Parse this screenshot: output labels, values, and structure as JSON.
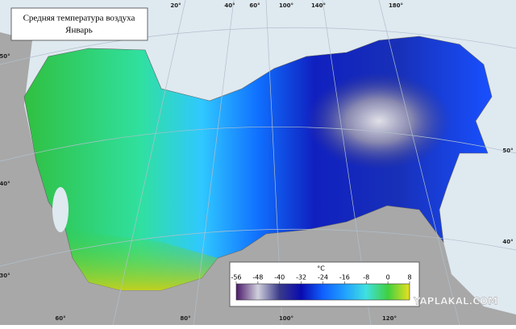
{
  "title": {
    "line1": "Средняя температура воздуха",
    "line2": "Январь"
  },
  "graticule": {
    "top": [
      "20°",
      "40°",
      "60°",
      "100°",
      "140°",
      "180°"
    ],
    "left": [
      "50°",
      "40°",
      "30°"
    ],
    "bottom": [
      "60°",
      "80°",
      "100°",
      "120°"
    ],
    "right": [
      "50°",
      "40°"
    ]
  },
  "legend": {
    "unit": "°C",
    "ticks": [
      -56,
      -48,
      -40,
      -32,
      -24,
      -16,
      -8,
      0,
      8
    ]
  },
  "watermark": "YAPLAKAL.COM"
}
